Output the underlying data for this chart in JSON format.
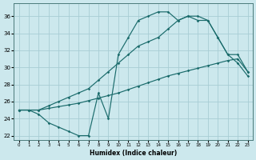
{
  "bg_color": "#cce8ed",
  "grid_color": "#a8cdd4",
  "line_color": "#1a6b6b",
  "xlabel": "Humidex (Indice chaleur)",
  "xlim": [
    -0.5,
    23.5
  ],
  "ylim": [
    21.5,
    37.5
  ],
  "xticks": [
    0,
    1,
    2,
    3,
    4,
    5,
    6,
    7,
    8,
    9,
    10,
    11,
    12,
    13,
    14,
    15,
    16,
    17,
    18,
    19,
    20,
    21,
    22,
    23
  ],
  "yticks": [
    22,
    24,
    26,
    28,
    30,
    32,
    34,
    36
  ],
  "line1_x": [
    0,
    1,
    2,
    3,
    4,
    5,
    6,
    7,
    8,
    9,
    10,
    11,
    12,
    13,
    14,
    15,
    16,
    17,
    18,
    19,
    20,
    21,
    22,
    23
  ],
  "line1_y": [
    25.0,
    25.0,
    25.0,
    25.2,
    25.4,
    25.6,
    25.8,
    26.1,
    26.4,
    26.7,
    27.0,
    27.4,
    27.8,
    28.2,
    28.6,
    29.0,
    29.3,
    29.6,
    29.9,
    30.2,
    30.5,
    30.8,
    31.0,
    29.5
  ],
  "line2_x": [
    0,
    1,
    2,
    3,
    4,
    5,
    6,
    7,
    8,
    9,
    10,
    11,
    12,
    13,
    14,
    15,
    16,
    17,
    18,
    19,
    20,
    21,
    22,
    23
  ],
  "line2_y": [
    25.0,
    25.0,
    25.0,
    25.5,
    26.0,
    26.5,
    27.0,
    27.5,
    28.5,
    29.5,
    30.5,
    31.5,
    32.5,
    33.0,
    33.5,
    34.5,
    35.5,
    36.0,
    36.0,
    35.5,
    33.5,
    31.5,
    31.5,
    29.5
  ],
  "line3_x": [
    0,
    1,
    2,
    3,
    4,
    5,
    6,
    7,
    8,
    9,
    10,
    11,
    12,
    13,
    14,
    15,
    16,
    17,
    18,
    19,
    20,
    21,
    22,
    23
  ],
  "line3_y": [
    25.0,
    25.0,
    24.5,
    23.5,
    23.0,
    22.5,
    22.0,
    22.0,
    27.0,
    24.0,
    31.5,
    33.5,
    35.5,
    36.0,
    36.5,
    36.5,
    35.5,
    36.0,
    35.5,
    35.5,
    33.5,
    31.5,
    30.5,
    29.0
  ]
}
